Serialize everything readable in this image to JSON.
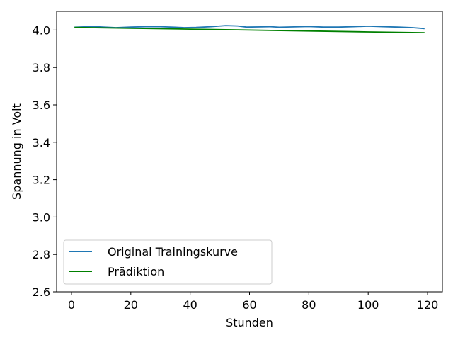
{
  "chart_data": {
    "type": "line",
    "title": "",
    "xlabel": "Stunden",
    "ylabel": "Spannung in Volt",
    "xlim": [
      -5,
      125
    ],
    "ylim": [
      2.6,
      4.1
    ],
    "xticks": [
      0,
      20,
      40,
      60,
      80,
      100,
      120
    ],
    "yticks": [
      2.6,
      2.8,
      3.0,
      3.2,
      3.4,
      3.6,
      3.8,
      4.0
    ],
    "xtick_labels": [
      "0",
      "20",
      "40",
      "60",
      "80",
      "100",
      "120"
    ],
    "ytick_labels": [
      "2.6",
      "2.8",
      "3.0",
      "3.2",
      "3.4",
      "3.6",
      "3.8",
      "4.0"
    ],
    "grid": false,
    "legend_position": "lower-left",
    "series": [
      {
        "name": "Original Trainingskurve",
        "color": "#1f77b4",
        "x": [
          1,
          7,
          15,
          20,
          25,
          30,
          35,
          38,
          42,
          47,
          52,
          56,
          59,
          64,
          67,
          70,
          75,
          80,
          85,
          90,
          95,
          100,
          105,
          110,
          115,
          119
        ],
        "y": [
          4.015,
          4.019,
          4.013,
          4.016,
          4.018,
          4.018,
          4.015,
          4.013,
          4.014,
          4.018,
          4.024,
          4.022,
          4.016,
          4.017,
          4.018,
          4.015,
          4.017,
          4.019,
          4.016,
          4.016,
          4.018,
          4.021,
          4.018,
          4.016,
          4.013,
          4.008
        ]
      },
      {
        "name": "Prädiktion",
        "color": "#008000",
        "x": [
          1,
          20,
          40,
          60,
          80,
          100,
          119
        ],
        "y": [
          4.014,
          4.01,
          4.005,
          4.0,
          3.995,
          3.99,
          3.986
        ]
      }
    ]
  }
}
